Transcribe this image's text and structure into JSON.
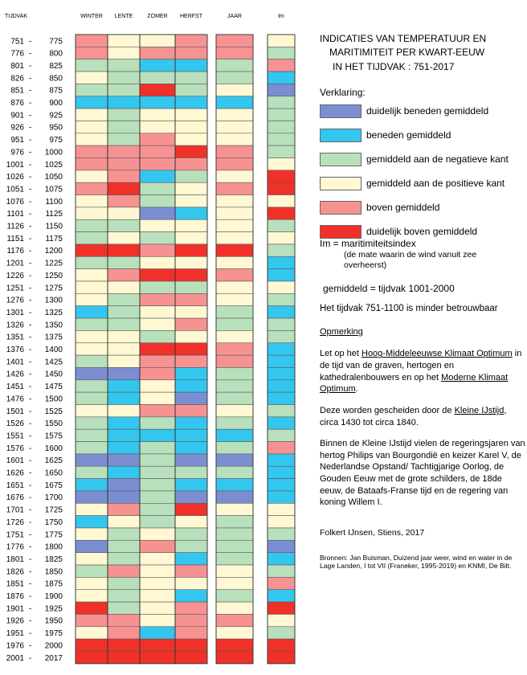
{
  "colors": {
    "cat1": "#7b8ed2",
    "cat2": "#33c6ef",
    "cat3": "#b8e0bc",
    "cat4": "#fff8d2",
    "cat5": "#f79292",
    "cat6": "#f0312a"
  },
  "chart_data": {
    "type": "heatmap",
    "columns": [
      "WINTER",
      "LENTE",
      "ZOMER",
      "HERFST",
      "JAAR",
      "Im"
    ],
    "row_header": "TIJDVAK",
    "scale": {
      "1": "duidelijk beneden gemiddeld",
      "2": "beneden gemiddeld",
      "3": "gemiddeld aan de negatieve kant",
      "4": "gemiddeld aan de positieve kant",
      "5": "boven gemiddeld",
      "6": "duidelijk boven gemiddeld"
    },
    "rows": [
      {
        "start": "751",
        "end": "775",
        "values": [
          5,
          4,
          4,
          5,
          5,
          4
        ]
      },
      {
        "start": "776",
        "end": "800",
        "values": [
          5,
          4,
          5,
          5,
          5,
          3
        ]
      },
      {
        "start": "801",
        "end": "825",
        "values": [
          3,
          3,
          2,
          2,
          3,
          5
        ]
      },
      {
        "start": "826",
        "end": "850",
        "values": [
          4,
          3,
          3,
          3,
          3,
          2
        ]
      },
      {
        "start": "851",
        "end": "875",
        "values": [
          3,
          3,
          6,
          3,
          4,
          1
        ]
      },
      {
        "start": "876",
        "end": "900",
        "values": [
          2,
          2,
          2,
          2,
          2,
          3
        ]
      },
      {
        "start": "901",
        "end": "925",
        "values": [
          4,
          3,
          4,
          4,
          4,
          3
        ]
      },
      {
        "start": "926",
        "end": "950",
        "values": [
          4,
          3,
          4,
          4,
          4,
          3
        ]
      },
      {
        "start": "951",
        "end": "975",
        "values": [
          4,
          3,
          5,
          4,
          4,
          3
        ]
      },
      {
        "start": "976",
        "end": "1000",
        "values": [
          5,
          5,
          5,
          6,
          5,
          3
        ]
      },
      {
        "start": "1001",
        "end": "1025",
        "values": [
          5,
          5,
          5,
          5,
          5,
          4
        ]
      },
      {
        "start": "1026",
        "end": "1050",
        "values": [
          4,
          5,
          2,
          3,
          4,
          6
        ]
      },
      {
        "start": "1051",
        "end": "1075",
        "values": [
          5,
          6,
          3,
          4,
          5,
          6
        ]
      },
      {
        "start": "1076",
        "end": "1100",
        "values": [
          4,
          5,
          3,
          4,
          4,
          4
        ]
      },
      {
        "start": "1101",
        "end": "1125",
        "values": [
          4,
          4,
          1,
          2,
          4,
          6
        ]
      },
      {
        "start": "1126",
        "end": "1150",
        "values": [
          3,
          3,
          4,
          4,
          4,
          3
        ]
      },
      {
        "start": "1151",
        "end": "1175",
        "values": [
          3,
          4,
          3,
          4,
          4,
          4
        ]
      },
      {
        "start": "1176",
        "end": "1200",
        "values": [
          6,
          6,
          5,
          6,
          6,
          3
        ]
      },
      {
        "start": "1201",
        "end": "1225",
        "values": [
          3,
          3,
          4,
          4,
          4,
          2
        ]
      },
      {
        "start": "1226",
        "end": "1250",
        "values": [
          4,
          5,
          6,
          6,
          5,
          2
        ]
      },
      {
        "start": "1251",
        "end": "1275",
        "values": [
          4,
          4,
          3,
          3,
          4,
          4
        ]
      },
      {
        "start": "1276",
        "end": "1300",
        "values": [
          4,
          3,
          5,
          5,
          4,
          3
        ]
      },
      {
        "start": "1301",
        "end": "1325",
        "values": [
          2,
          3,
          4,
          4,
          3,
          2
        ]
      },
      {
        "start": "1326",
        "end": "1350",
        "values": [
          3,
          3,
          4,
          5,
          3,
          3
        ]
      },
      {
        "start": "1351",
        "end": "1375",
        "values": [
          4,
          4,
          3,
          4,
          4,
          3
        ]
      },
      {
        "start": "1376",
        "end": "1400",
        "values": [
          4,
          4,
          6,
          6,
          5,
          2
        ]
      },
      {
        "start": "1401",
        "end": "1425",
        "values": [
          3,
          4,
          5,
          5,
          5,
          2
        ]
      },
      {
        "start": "1426",
        "end": "1450",
        "values": [
          1,
          1,
          5,
          2,
          3,
          2
        ]
      },
      {
        "start": "1451",
        "end": "1475",
        "values": [
          3,
          2,
          4,
          2,
          3,
          2
        ]
      },
      {
        "start": "1476",
        "end": "1500",
        "values": [
          3,
          2,
          4,
          1,
          3,
          2
        ]
      },
      {
        "start": "1501",
        "end": "1525",
        "values": [
          4,
          4,
          5,
          5,
          4,
          3
        ]
      },
      {
        "start": "1526",
        "end": "1550",
        "values": [
          3,
          2,
          3,
          2,
          3,
          2
        ]
      },
      {
        "start": "1551",
        "end": "1575",
        "values": [
          3,
          2,
          2,
          2,
          2,
          3
        ]
      },
      {
        "start": "1576",
        "end": "1600",
        "values": [
          3,
          2,
          3,
          2,
          3,
          5
        ]
      },
      {
        "start": "1601",
        "end": "1625",
        "values": [
          1,
          1,
          3,
          1,
          1,
          2
        ]
      },
      {
        "start": "1626",
        "end": "1650",
        "values": [
          3,
          2,
          3,
          3,
          3,
          2
        ]
      },
      {
        "start": "1651",
        "end": "1675",
        "values": [
          2,
          1,
          3,
          2,
          2,
          2
        ]
      },
      {
        "start": "1676",
        "end": "1700",
        "values": [
          1,
          1,
          3,
          1,
          1,
          2
        ]
      },
      {
        "start": "1701",
        "end": "1725",
        "values": [
          4,
          5,
          3,
          6,
          4,
          4
        ]
      },
      {
        "start": "1726",
        "end": "1750",
        "values": [
          2,
          4,
          3,
          4,
          3,
          4
        ]
      },
      {
        "start": "1751",
        "end": "1775",
        "values": [
          4,
          3,
          4,
          3,
          3,
          3
        ]
      },
      {
        "start": "1776",
        "end": "1800",
        "values": [
          1,
          3,
          5,
          3,
          3,
          1
        ]
      },
      {
        "start": "1801",
        "end": "1825",
        "values": [
          4,
          3,
          4,
          2,
          3,
          2
        ]
      },
      {
        "start": "1826",
        "end": "1850",
        "values": [
          3,
          5,
          4,
          5,
          4,
          3
        ]
      },
      {
        "start": "1851",
        "end": "1875",
        "values": [
          4,
          3,
          4,
          4,
          4,
          5
        ]
      },
      {
        "start": "1876",
        "end": "1900",
        "values": [
          4,
          3,
          4,
          2,
          3,
          2
        ]
      },
      {
        "start": "1901",
        "end": "1925",
        "values": [
          6,
          3,
          4,
          5,
          4,
          6
        ]
      },
      {
        "start": "1926",
        "end": "1950",
        "values": [
          5,
          5,
          4,
          5,
          5,
          4
        ]
      },
      {
        "start": "1951",
        "end": "1975",
        "values": [
          4,
          5,
          2,
          5,
          4,
          3
        ]
      },
      {
        "start": "1976",
        "end": "2000",
        "values": [
          6,
          6,
          6,
          6,
          6,
          6
        ]
      },
      {
        "start": "2001",
        "end": "2017",
        "values": [
          6,
          6,
          6,
          6,
          6,
          6
        ]
      }
    ]
  },
  "legend": {
    "title_lines": [
      "INDICATIES VAN TEMPERATUUR EN",
      "MARITIMITEIT PER KWART-EEUW",
      "IN HET TIJDVAK : 751-2017"
    ],
    "heading": "Verklaring:",
    "items": [
      {
        "label": "duidelijk beneden gemiddeld",
        "color": "#7b8ed2"
      },
      {
        "label": "beneden gemiddeld",
        "color": "#33c6ef"
      },
      {
        "label": "gemiddeld aan de negatieve kant",
        "color": "#b8e0bc"
      },
      {
        "label": "gemiddeld aan de positieve kant",
        "color": "#fff8d2"
      },
      {
        "label": "boven gemiddeld",
        "color": "#f79292"
      },
      {
        "label": "duidelijk boven gemiddeld",
        "color": "#f0312a"
      }
    ],
    "im_def": "Im = maritimiteitsindex",
    "im_note": "(de mate waarin de wind vanuit zee overheerst)",
    "avg_def": "gemiddeld = tijdvak 1001-2000",
    "reliability": "Het tijdvak 751-1100 is minder betrouwbaar"
  },
  "remarks": {
    "heading": "Opmerking",
    "p1": {
      "t1": "Let op het ",
      "l1": "Hoog-Middeleeuwse Klimaat Optimum",
      "t2": " in de tijd van de graven, hertogen en kathedralenbouwers en op het ",
      "l2": "Moderne Klimaat Optimum",
      "t3": "."
    },
    "p2": {
      "t1": "Deze worden gescheiden door de ",
      "l1": "Kleine IJstijd",
      "t2": ", circa 1430 tot circa 1840."
    },
    "p3": "Binnen de Kleine IJstijd vielen de regeringsjaren van hertog Philips van Bourgondië en keizer Karel V, de Nederlandse Opstand/ Tachtigjarige Oorlog, de Gouden Eeuw met de grote schilders, de 18de eeuw, de Bataafs-Franse tijd en de regering van koning Willem I.",
    "author": "Folkert IJnsen, Stiens, 2017",
    "sources": "Bronnen: Jan Buisman, Duizend jaar weer, wind en water in de Lage Landen, I tot VII (Franeker, 1995-2019) en KNMI, De Bilt."
  }
}
